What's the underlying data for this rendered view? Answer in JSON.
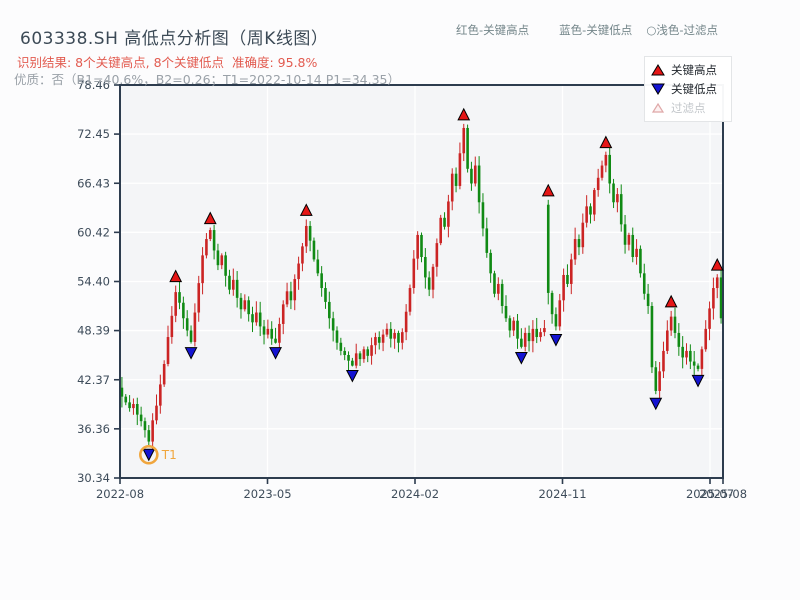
{
  "header": {
    "title": "603338.SH 高低点分析图（周K线图）",
    "inline_legend": [
      {
        "label": "红色-关键高点"
      },
      {
        "label": "蓝色-关键低点"
      },
      {
        "label": "○浅色-过滤点"
      }
    ],
    "result_line": "识别结果: 8个关键高点, 8个关键低点  准确度: 95.8%",
    "quality_line": "优质：否（B1=40.6%，B2=0.26；T1=2022-10-14 P1=34.35）"
  },
  "legend_box": {
    "items": [
      {
        "icon": "key-high-marker",
        "label": "关键高点"
      },
      {
        "icon": "key-low-marker",
        "label": "关键低点"
      },
      {
        "icon": "filtered-point-marker",
        "label": "过滤点"
      }
    ]
  },
  "chart_data": {
    "type": "candlestick",
    "symbol": "603338.SH",
    "frequency": "weekly",
    "title": "603338.SH 高低点分析图（周K线图）",
    "ylim": [
      30.34,
      78.46
    ],
    "y_ticks": [
      30.34,
      36.36,
      42.37,
      48.39,
      54.4,
      60.42,
      66.43,
      72.45,
      78.46
    ],
    "x_tick_labels": [
      "2022-08",
      "2023-05",
      "2024-02",
      "2024-11",
      "2025-07",
      "2025-08"
    ],
    "grid": true,
    "closes": [
      40.3,
      39.6,
      38.9,
      39.4,
      38.1,
      37.3,
      36.2,
      34.8,
      37.4,
      39.2,
      41.8,
      44.3,
      47.6,
      50.2,
      53.1,
      51.8,
      49.9,
      48.4,
      47.0,
      50.6,
      54.2,
      57.6,
      59.6,
      60.7,
      58.2,
      56.4,
      57.6,
      55.1,
      53.4,
      54.6,
      52.4,
      51.0,
      52.1,
      50.4,
      49.4,
      50.6,
      48.9,
      47.9,
      48.6,
      47.4,
      46.9,
      49.2,
      51.6,
      53.2,
      52.1,
      54.7,
      56.6,
      58.7,
      61.2,
      59.4,
      57.1,
      55.4,
      53.6,
      51.9,
      49.9,
      48.4,
      46.9,
      45.9,
      45.4,
      44.7,
      44.1,
      45.6,
      44.9,
      46.1,
      45.3,
      46.6,
      47.6,
      46.9,
      47.9,
      48.6,
      47.4,
      48.1,
      46.9,
      48.2,
      50.7,
      53.6,
      57.2,
      60.1,
      57.4,
      54.9,
      53.4,
      56.2,
      59.1,
      62.2,
      61.1,
      64.2,
      67.6,
      66.1,
      70.1,
      73.2,
      68.2,
      66.4,
      68.6,
      64.1,
      60.9,
      57.9,
      55.4,
      52.9,
      54.1,
      51.4,
      49.9,
      48.4,
      49.6,
      47.4,
      46.4,
      48.1,
      47.1,
      48.6,
      47.6,
      48.2,
      48.7,
      53.0,
      50.4,
      48.9,
      52.1,
      55.2,
      54.1,
      57.1,
      59.6,
      58.6,
      61.6,
      63.6,
      62.6,
      65.6,
      67.1,
      68.6,
      69.9,
      66.4,
      64.1,
      65.1,
      61.4,
      58.9,
      60.1,
      57.4,
      58.4,
      55.4,
      52.9,
      51.4,
      43.9,
      41.0,
      43.4,
      45.9,
      48.4,
      50.1,
      48.1,
      46.4,
      45.1,
      45.9,
      44.6,
      44.1,
      43.7,
      46.1,
      48.6,
      51.1,
      53.6,
      54.9,
      49.9
    ],
    "candle_overrides": [
      {
        "week": 111,
        "open": 63.8,
        "low": 51.6
      }
    ],
    "key_highs": [
      {
        "week": 14,
        "price": 53.9
      },
      {
        "week": 23,
        "price": 61.0
      },
      {
        "week": 48,
        "price": 62.0
      },
      {
        "week": 89,
        "price": 73.7
      },
      {
        "week": 111,
        "price": 64.4
      },
      {
        "week": 126,
        "price": 70.3
      },
      {
        "week": 143,
        "price": 50.8
      },
      {
        "week": 155,
        "price": 55.3
      }
    ],
    "key_lows": [
      {
        "week": 7,
        "price": 34.35
      },
      {
        "week": 18,
        "price": 46.8
      },
      {
        "week": 40,
        "price": 46.8
      },
      {
        "week": 60,
        "price": 44.0
      },
      {
        "week": 104,
        "price": 46.2
      },
      {
        "week": 113,
        "price": 48.4
      },
      {
        "week": 139,
        "price": 40.6
      },
      {
        "week": 150,
        "price": 43.4
      }
    ],
    "annotation": {
      "label": "T1",
      "week": 7,
      "price": 34.35
    },
    "colors": {
      "up_candle": "#cb2424",
      "down_candle": "#108a14",
      "key_high_marker": "#e51616",
      "key_low_marker": "#1414d2",
      "marker_edge": "#000000",
      "filtered_marker_fill": "#fdf1f1",
      "filtered_marker_edge": "#dfa8a8",
      "annotation_color": "#f0a63e",
      "plot_bg": "#f4f5f7",
      "grid_color": "#ffffff",
      "border_color": "#2d3c4e",
      "tick_label_color": "#3e4c5a"
    }
  }
}
